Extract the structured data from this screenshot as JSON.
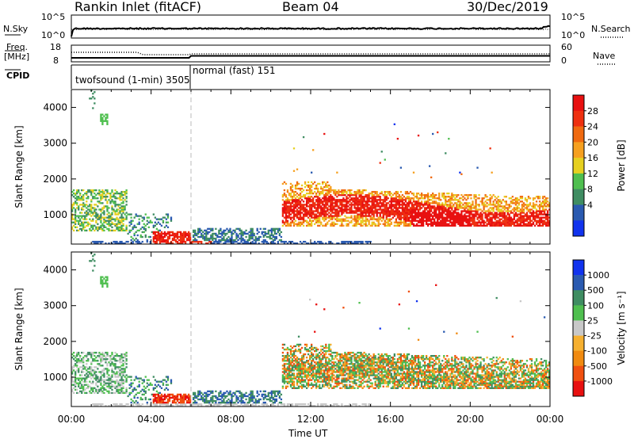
{
  "header": {
    "station": "Rankin Inlet (fitACF)",
    "beam": "Beam 04",
    "date": "30/Dec/2019"
  },
  "top_panels": {
    "nsky_label": "N.Sky",
    "nsearch_label": "N.Search",
    "nsky_ticks": [
      "10^5",
      "10^0"
    ],
    "nsky_right_ticks": [
      "10^5",
      "10^0"
    ],
    "freq_label_1": "Freq.",
    "freq_label_2": "[MHz]",
    "freq_ticks": [
      "18",
      "8"
    ],
    "nave_label": "Nave",
    "nave_ticks": [
      "60",
      "0"
    ],
    "cpid_label": "CPID",
    "cpid_1": "twofsound (1-min) 3505",
    "cpid_2": "normal (fast) 151"
  },
  "chart_data": [
    {
      "type": "heatmap",
      "name": "power",
      "ylabel": "Slant Range [km]",
      "yticks": [
        "4000",
        "3000",
        "2000",
        "1000"
      ],
      "colorbar_label": "Power [dB]",
      "colorbar_ticks": [
        "28",
        "24",
        "20",
        "16",
        "12",
        "8",
        "4"
      ],
      "colors": [
        "#1133ee",
        "#2a5ab0",
        "#3f8d62",
        "#4fbf4f",
        "#e6d020",
        "#f6a020",
        "#f06a10",
        "#ee3010",
        "#e81010"
      ],
      "ylim": [
        180,
        4500
      ]
    },
    {
      "type": "heatmap",
      "name": "velocity",
      "ylabel": "Slant Range [km]",
      "yticks": [
        "4000",
        "3000",
        "2000",
        "1000"
      ],
      "colorbar_label": "Velocity [m s⁻¹]",
      "colorbar_ticks": [
        "1000",
        "500",
        "100",
        "25",
        "-25",
        "-100",
        "-500",
        "-1000"
      ],
      "colors": [
        "#1133ee",
        "#2a5ab0",
        "#3f8d62",
        "#4fbf4f",
        "#c8c8c8",
        "#f6b030",
        "#f08a10",
        "#f05010",
        "#e81010"
      ],
      "ylim": [
        180,
        4500
      ]
    }
  ],
  "xaxis": {
    "label": "Time UT",
    "ticks": [
      "00:00",
      "04:00",
      "08:00",
      "12:00",
      "16:00",
      "20:00",
      "00:00"
    ]
  }
}
